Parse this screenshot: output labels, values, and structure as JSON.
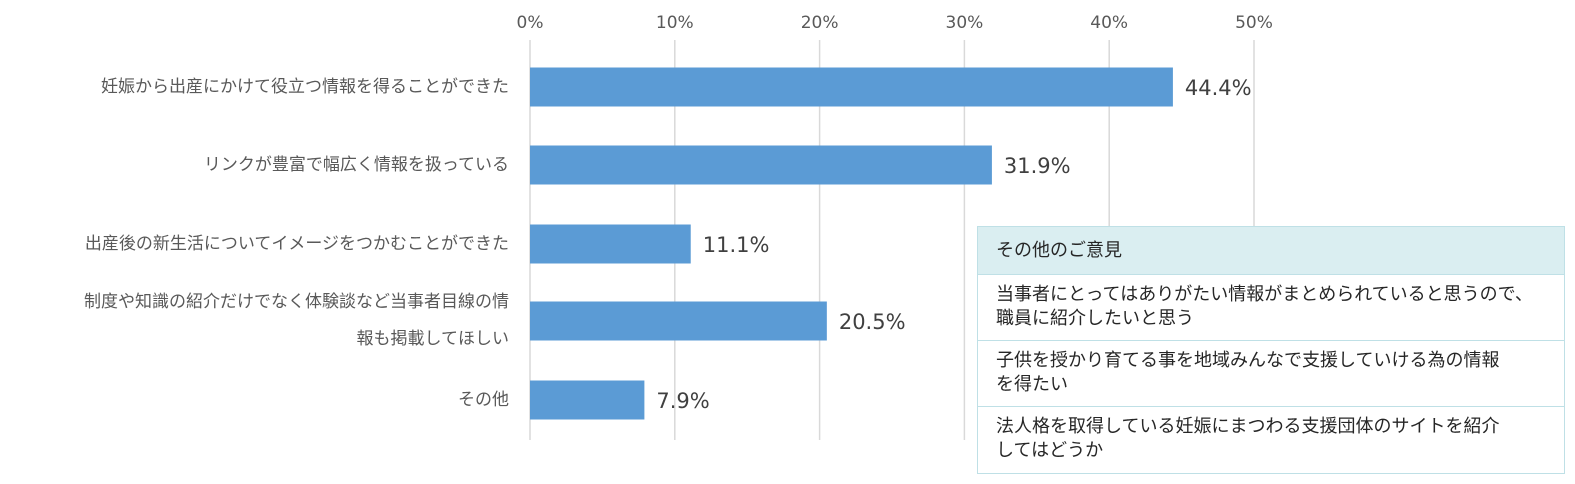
{
  "chart_data": {
    "type": "bar",
    "orientation": "horizontal",
    "categories": [
      "妊娠から出産にかけて役立つ情報を得ることができた",
      "リンクが豊富で幅広く情報を扱っている",
      "出産後の新生活についてイメージをつかむことができた",
      "制度や知識の紹介だけでなく体験談など当事者目線の情報も掲載してほしい",
      "その他"
    ],
    "values": [
      44.4,
      31.9,
      11.1,
      20.5,
      7.9
    ],
    "value_labels": [
      "44.4%",
      "31.9%",
      "11.1%",
      "20.5%",
      "7.9%"
    ],
    "xlim": [
      0,
      50
    ],
    "x_ticks": [
      "0%",
      "10%",
      "20%",
      "30%",
      "40%",
      "50%"
    ],
    "grid": true,
    "bar_color": "#5b9bd5",
    "grid_color": "#d9d9d9"
  },
  "category_labels": [
    [
      "妊娠から出産にかけて役立つ情報を得ることができた"
    ],
    [
      "リンクが豊富で幅広く情報を扱っている"
    ],
    [
      "出産後の新生活についてイメージをつかむことができた"
    ],
    [
      "制度や知識の紹介だけでなく体験談など当事者目線の情",
      "報も掲載してほしい"
    ],
    [
      "その他"
    ]
  ],
  "comments": {
    "title": "その他のご意見",
    "items": [
      [
        "当事者にとってはありがたい情報がまとめられていると思うので、",
        "職員に紹介したいと思う"
      ],
      [
        "子供を授かり育てる事を地域みんなで支援していける為の情報",
        "を得たい"
      ],
      [
        "法人格を取得している妊娠にまつわる支援団体のサイトを紹介",
        "してはどうか"
      ]
    ],
    "header_color": "#daeef1",
    "border_color": "#bfe0e6"
  }
}
